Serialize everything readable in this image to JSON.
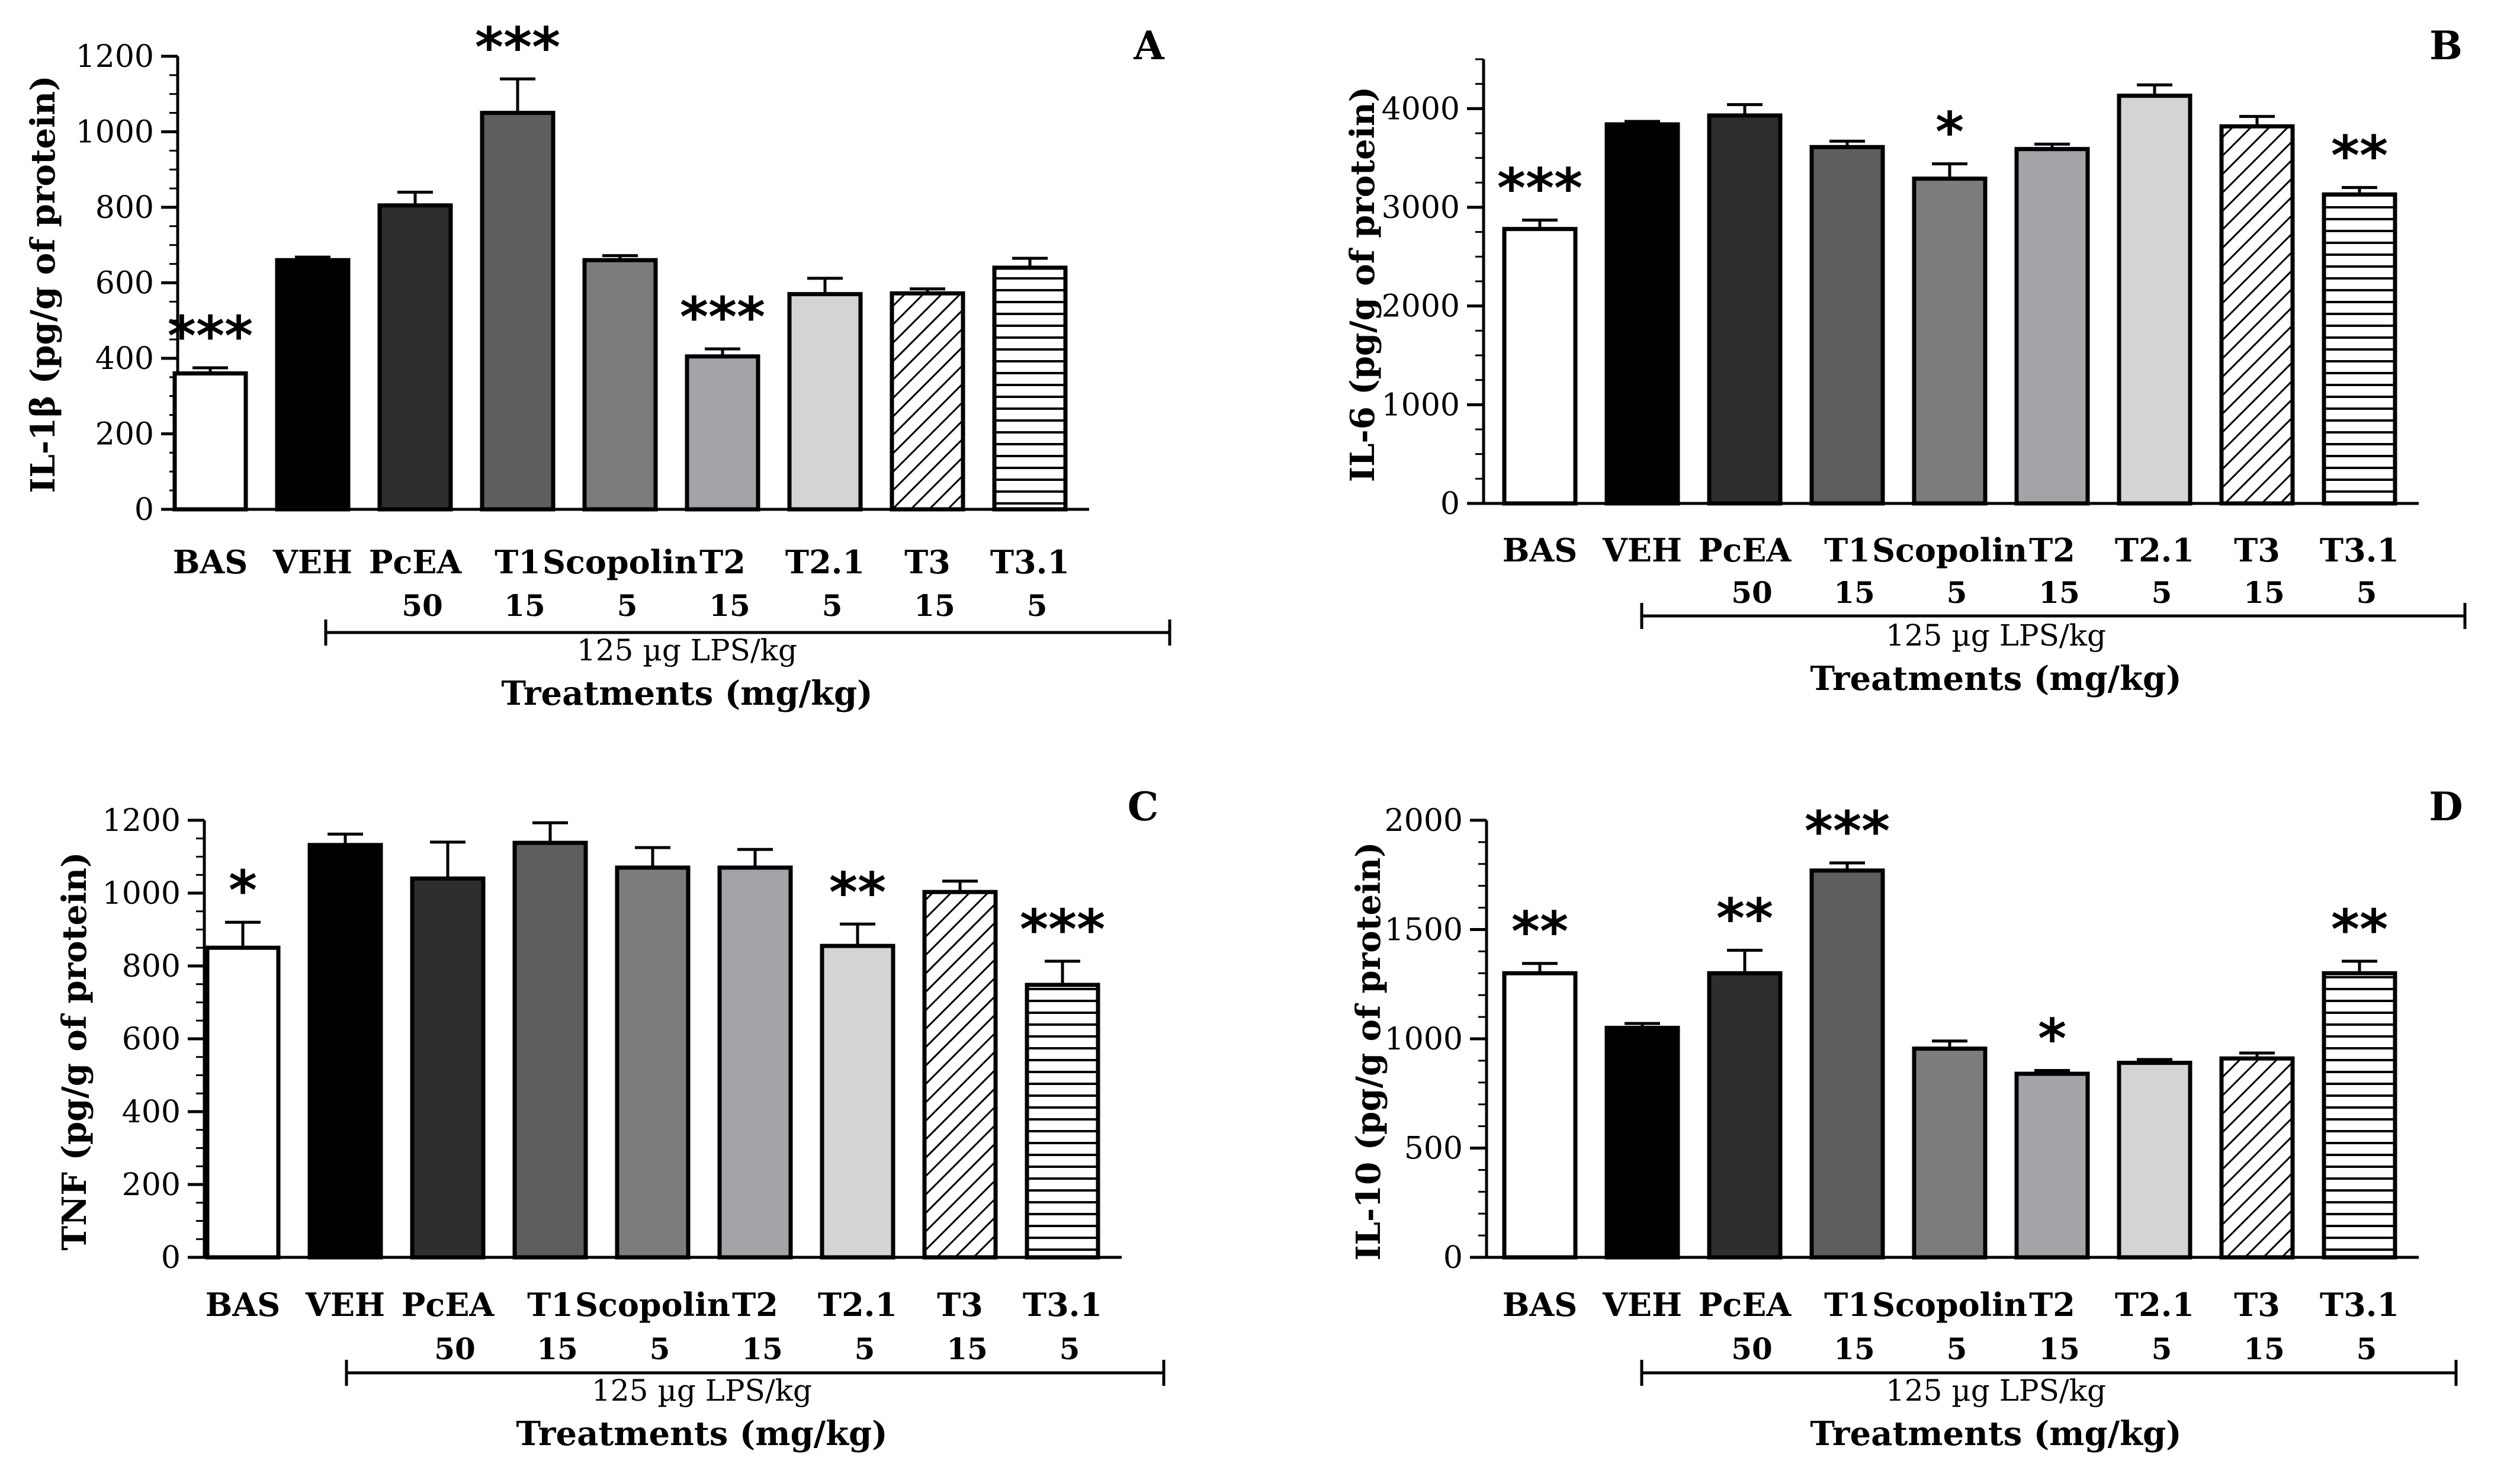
{
  "colors": {
    "white": "#ffffff",
    "black": "#000000",
    "dark_gray": "#2e2e2e",
    "mid_dark_gray": "#5e5e5e",
    "mid_gray": "#7c7c7c",
    "light_mid_gray": "#a3a3a8",
    "light_gray": "#d4d4d4"
  },
  "chart_data": [
    {
      "panel": "A",
      "type": "bar",
      "ylabel": "IL-1β (pg/g of protein)",
      "xlabel": "Treatments (mg/kg)",
      "lps_label": "125 µg LPS/kg",
      "ylim": [
        0,
        1200
      ],
      "yticks": [
        "0",
        "200",
        "400",
        "600",
        "800",
        "1000",
        "1200"
      ],
      "ytick_values": [
        0,
        200,
        400,
        600,
        800,
        1000,
        1200
      ],
      "minor_step": 50,
      "categories": [
        "BAS",
        "VEH",
        "PcEA",
        "T1",
        "Scopolin",
        "T2",
        "T2.1",
        "T3",
        "T3.1"
      ],
      "doses": [
        "",
        "",
        "50",
        "15",
        "5",
        "15",
        "5",
        "15",
        "5"
      ],
      "values": [
        360,
        660,
        805,
        1050,
        660,
        405,
        570,
        572,
        640
      ],
      "errors": [
        15,
        8,
        35,
        90,
        12,
        20,
        42,
        12,
        25
      ],
      "significance": [
        "***",
        "",
        "",
        "***",
        "",
        "***",
        "",
        "",
        ""
      ],
      "fills": [
        "white",
        "black",
        "dark_gray",
        "mid_dark_gray",
        "mid_gray",
        "light_mid_gray",
        "light_gray",
        "diag",
        "horiz"
      ]
    },
    {
      "panel": "B",
      "type": "bar",
      "ylabel": "IL-6 (pg/g of protein)",
      "xlabel": "Treatments (mg/kg)",
      "lps_label": "125 µg LPS/kg",
      "ylim": [
        0,
        4500
      ],
      "yticks": [
        "0",
        "1000",
        "2000",
        "3000",
        "4000"
      ],
      "ytick_values": [
        0,
        1000,
        2000,
        3000,
        4000
      ],
      "minor_step": 250,
      "categories": [
        "BAS",
        "VEH",
        "PcEA",
        "T1",
        "Scopolin",
        "T2",
        "T2.1",
        "T3",
        "T3.1"
      ],
      "doses": [
        "",
        "",
        "50",
        "15",
        "5",
        "15",
        "5",
        "15",
        "5"
      ],
      "values": [
        2780,
        3840,
        3930,
        3610,
        3290,
        3590,
        4130,
        3820,
        3130
      ],
      "errors": [
        90,
        30,
        110,
        60,
        150,
        50,
        110,
        100,
        70
      ],
      "significance": [
        "***",
        "",
        "",
        "",
        "*",
        "",
        "",
        "",
        "**"
      ],
      "fills": [
        "white",
        "black",
        "dark_gray",
        "mid_dark_gray",
        "mid_gray",
        "light_mid_gray",
        "light_gray",
        "diag",
        "horiz"
      ]
    },
    {
      "panel": "C",
      "type": "bar",
      "ylabel": "TNF (pg/g of protein)",
      "xlabel": "Treatments (mg/kg)",
      "lps_label": "125 µg LPS/kg",
      "ylim": [
        0,
        1200
      ],
      "yticks": [
        "0",
        "200",
        "400",
        "600",
        "800",
        "1000",
        "1200"
      ],
      "ytick_values": [
        0,
        200,
        400,
        600,
        800,
        1000,
        1200
      ],
      "minor_step": 50,
      "categories": [
        "BAS",
        "VEH",
        "PcEA",
        "T1",
        "Scopolin",
        "T2",
        "T2.1",
        "T3",
        "T3.1"
      ],
      "doses": [
        "",
        "",
        "50",
        "15",
        "5",
        "15",
        "5",
        "15",
        "5"
      ],
      "values": [
        850,
        1132,
        1040,
        1138,
        1070,
        1070,
        855,
        1003,
        748
      ],
      "errors": [
        70,
        30,
        100,
        55,
        55,
        50,
        60,
        30,
        65
      ],
      "significance": [
        "*",
        "",
        "",
        "",
        "",
        "",
        "**",
        "",
        "***"
      ],
      "fills": [
        "white",
        "black",
        "dark_gray",
        "mid_dark_gray",
        "mid_gray",
        "light_mid_gray",
        "light_gray",
        "diag",
        "horiz"
      ]
    },
    {
      "panel": "D",
      "type": "bar",
      "ylabel": "IL-10 (pg/g of protein)",
      "xlabel": "Treatments (mg/kg)",
      "lps_label": "125 µg LPS/kg",
      "ylim": [
        0,
        2000
      ],
      "yticks": [
        "0",
        "500",
        "1000",
        "1500",
        "2000"
      ],
      "ytick_values": [
        0,
        500,
        1000,
        1500,
        2000
      ],
      "minor_step": 100,
      "categories": [
        "BAS",
        "VEH",
        "PcEA",
        "T1",
        "Scopolin",
        "T2",
        "T2.1",
        "T3",
        "T3.1"
      ],
      "doses": [
        "",
        "",
        "50",
        "15",
        "5",
        "15",
        "5",
        "15",
        "5"
      ],
      "values": [
        1300,
        1050,
        1300,
        1770,
        955,
        840,
        890,
        910,
        1300
      ],
      "errors": [
        45,
        20,
        105,
        35,
        35,
        15,
        15,
        25,
        55
      ],
      "significance": [
        "**",
        "",
        "**",
        "***",
        "",
        "*",
        "",
        "",
        "**"
      ],
      "fills": [
        "white",
        "black",
        "dark_gray",
        "mid_dark_gray",
        "mid_gray",
        "light_mid_gray",
        "light_gray",
        "diag",
        "horiz"
      ]
    }
  ]
}
